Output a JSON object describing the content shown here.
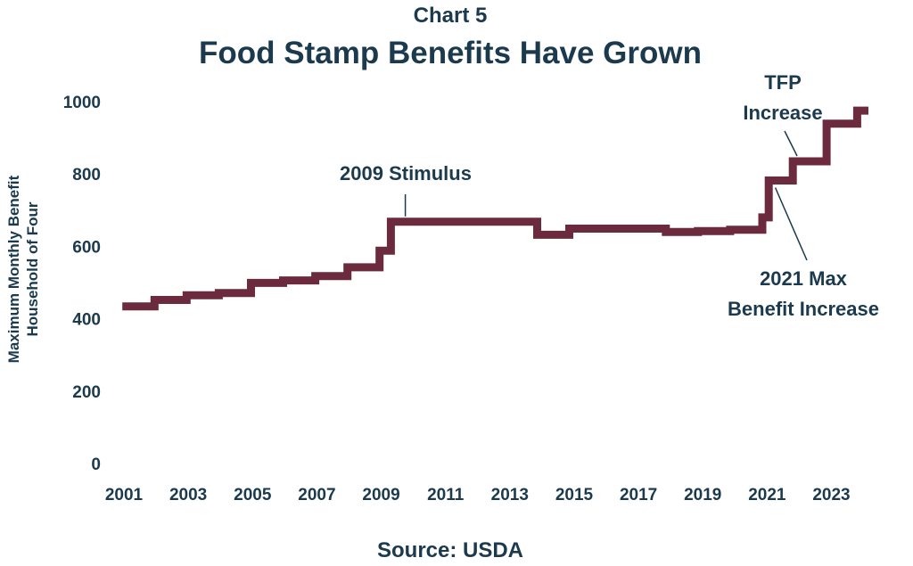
{
  "header": {
    "chart_label": "Chart 5",
    "title": "Food Stamp Benefits Have Grown"
  },
  "footer": {
    "source": "Source: USDA"
  },
  "colors": {
    "line": "#6b2a3e",
    "text": "#1b3a4e"
  },
  "chart_data": {
    "type": "line",
    "title": "Food Stamp Benefits Have Grown",
    "xlabel": "",
    "ylabel": [
      "Maximum Monthly Benefit",
      "Household of Four"
    ],
    "xlim": [
      2001,
      2024.4
    ],
    "ylim": [
      0,
      1000
    ],
    "x_ticks": [
      2001,
      2003,
      2005,
      2007,
      2009,
      2011,
      2013,
      2015,
      2017,
      2019,
      2021,
      2023
    ],
    "y_ticks": [
      0,
      200,
      400,
      600,
      800,
      1000
    ],
    "grid": false,
    "legend": "none",
    "step": true,
    "series": [
      {
        "x": [
          2000.95,
          2001.95,
          2002.95,
          2003.95,
          2004.95,
          2005.95,
          2006.95,
          2007.95,
          2008.95,
          2009.3,
          2009.75,
          2013.85,
          2014.85,
          2015.85,
          2016.85,
          2017.85,
          2018.85,
          2019.85,
          2020.85,
          2021.05,
          2021.3,
          2021.8,
          2022.85,
          2023.8,
          2024.15
        ],
        "y": [
          434,
          452,
          465,
          471,
          499,
          506,
          518,
          542,
          588,
          668,
          668,
          632,
          649,
          649,
          649,
          640,
          642,
          646,
          680,
          782,
          782,
          835,
          939,
          975,
          975
        ]
      }
    ],
    "annotations": [
      {
        "lines": [
          "2009 Stimulus"
        ],
        "x": 2009.75,
        "y": 668
      },
      {
        "lines": [
          "TFP",
          "Increase"
        ],
        "x": 2021.85,
        "y": 835
      },
      {
        "lines": [
          "2021 Max",
          "Benefit Increase"
        ],
        "x": 2021.2,
        "y": 782
      }
    ]
  }
}
